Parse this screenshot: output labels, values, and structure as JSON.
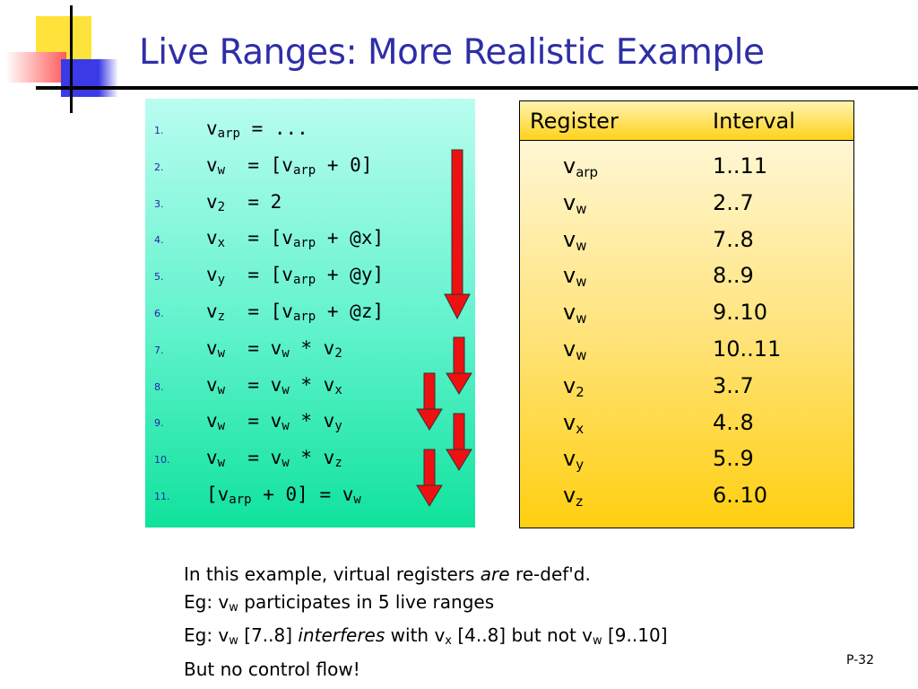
{
  "slide": {
    "title": "Live Ranges: More Realistic Example",
    "page_number": "P-32"
  },
  "colors": {
    "title": "#2e2ea8",
    "code_panel_top": "#b9fdf0",
    "code_panel_bottom": "#10e29c",
    "table_top": "#fffbe6",
    "table_bottom": "#ffcf10",
    "arrow": "#ee1111",
    "deco_yellow": "#ffe23a",
    "deco_red": "#ff6a6a",
    "deco_blue": "#3a3ae6"
  },
  "code_lines": [
    {
      "num": "1.",
      "parts": [
        {
          "t": "v"
        },
        {
          "sub": "arp"
        },
        {
          "t": " = ..."
        }
      ]
    },
    {
      "num": "2.",
      "parts": [
        {
          "t": "v"
        },
        {
          "sub": "w"
        },
        {
          "t": "  = [v"
        },
        {
          "sub": "arp"
        },
        {
          "t": " + 0]"
        }
      ]
    },
    {
      "num": "3.",
      "parts": [
        {
          "t": "v"
        },
        {
          "sub": "2"
        },
        {
          "t": "  = 2"
        }
      ]
    },
    {
      "num": "4.",
      "parts": [
        {
          "t": "v"
        },
        {
          "sub": "x"
        },
        {
          "t": "  = [v"
        },
        {
          "sub": "arp"
        },
        {
          "t": " + @x]"
        }
      ]
    },
    {
      "num": "5.",
      "parts": [
        {
          "t": "v"
        },
        {
          "sub": "y"
        },
        {
          "t": "  = [v"
        },
        {
          "sub": "arp"
        },
        {
          "t": " + @y]"
        }
      ]
    },
    {
      "num": "6.",
      "parts": [
        {
          "t": "v"
        },
        {
          "sub": "z"
        },
        {
          "t": "  = [v"
        },
        {
          "sub": "arp"
        },
        {
          "t": " + @z]"
        }
      ]
    },
    {
      "num": "7.",
      "parts": [
        {
          "t": "v"
        },
        {
          "sub": "w"
        },
        {
          "t": "  = v"
        },
        {
          "sub": "w"
        },
        {
          "t": " * v"
        },
        {
          "sub": "2"
        }
      ]
    },
    {
      "num": "8.",
      "parts": [
        {
          "t": "v"
        },
        {
          "sub": "w"
        },
        {
          "t": "  = v"
        },
        {
          "sub": "w"
        },
        {
          "t": " * v"
        },
        {
          "sub": "x"
        }
      ]
    },
    {
      "num": "9.",
      "parts": [
        {
          "t": "v"
        },
        {
          "sub": "w"
        },
        {
          "t": "  = v"
        },
        {
          "sub": "w"
        },
        {
          "t": " * v"
        },
        {
          "sub": "y"
        }
      ]
    },
    {
      "num": "10.",
      "parts": [
        {
          "t": "v"
        },
        {
          "sub": "w"
        },
        {
          "t": "  = v"
        },
        {
          "sub": "w"
        },
        {
          "t": " * v"
        },
        {
          "sub": "z"
        }
      ]
    },
    {
      "num": "11.",
      "parts": [
        {
          "t": "[v"
        },
        {
          "sub": "arp"
        },
        {
          "t": " + 0] = v"
        },
        {
          "sub": "w"
        }
      ]
    }
  ],
  "register_table": {
    "headers": {
      "register": "Register",
      "interval": "Interval"
    },
    "rows": [
      {
        "base": "v",
        "sub": "arp",
        "interval": "1..11"
      },
      {
        "base": "v",
        "sub": "w",
        "interval": "2..7"
      },
      {
        "base": "v",
        "sub": "w",
        "interval": "7..8"
      },
      {
        "base": "v",
        "sub": "w",
        "interval": "8..9"
      },
      {
        "base": "v",
        "sub": "w",
        "interval": "9..10"
      },
      {
        "base": "v",
        "sub": "w",
        "interval": "10..11"
      },
      {
        "base": "v",
        "sub": "2",
        "interval": "3..7"
      },
      {
        "base": "v",
        "sub": "x",
        "interval": "4..8"
      },
      {
        "base": "v",
        "sub": "y",
        "interval": "5..9"
      },
      {
        "base": "v",
        "sub": "z",
        "interval": "6..10"
      }
    ]
  },
  "notes": [
    {
      "parts": [
        {
          "t": "In this example, virtual registers "
        },
        {
          "em": "are"
        },
        {
          "t": " re-def'd."
        }
      ]
    },
    {
      "parts": [
        {
          "t": "Eg: v"
        },
        {
          "sub": "w"
        },
        {
          "t": " participates in 5 live ranges"
        }
      ]
    },
    {
      "parts": [
        {
          "t": "Eg: v"
        },
        {
          "sub": "w"
        },
        {
          "t": " [7..8] "
        },
        {
          "em": "interferes"
        },
        {
          "t": " with v"
        },
        {
          "sub": "x"
        },
        {
          "t": " [4..8] but not v"
        },
        {
          "sub": "w"
        },
        {
          "t": " [9..10]"
        }
      ]
    },
    {
      "parts": [
        {
          "t": "But no control flow!"
        }
      ]
    }
  ]
}
